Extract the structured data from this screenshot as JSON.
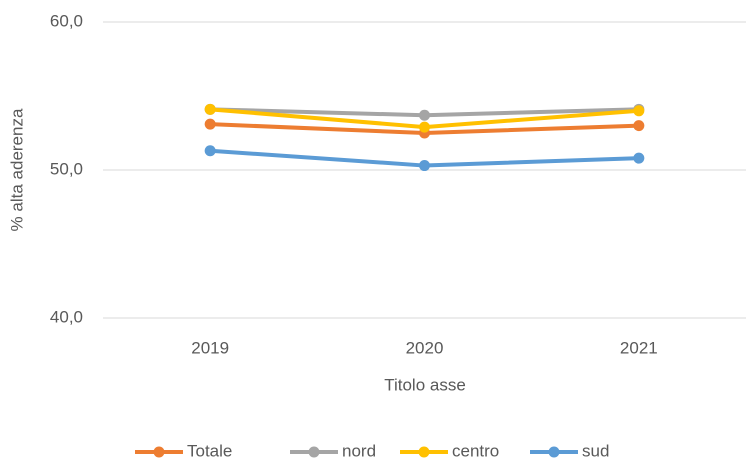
{
  "chart_data": {
    "type": "line",
    "y_label": "% alta aderenza",
    "x_label": "Titolo asse",
    "categories": [
      "2019",
      "2020",
      "2021"
    ],
    "series": [
      {
        "name": "Totale",
        "color": "#ed7d31",
        "values": [
          53.1,
          52.5,
          53.0
        ]
      },
      {
        "name": "nord",
        "color": "#a5a5a5",
        "values": [
          54.1,
          53.7,
          54.1
        ]
      },
      {
        "name": "centro",
        "color": "#ffc000",
        "values": [
          54.1,
          52.9,
          54.0
        ]
      },
      {
        "name": "sud",
        "color": "#5b9bd5",
        "values": [
          51.3,
          50.3,
          50.8
        ]
      }
    ],
    "ylim": [
      40,
      60
    ],
    "yticks": [
      {
        "value": 40,
        "label": "40,0"
      },
      {
        "value": 50,
        "label": "50,0"
      },
      {
        "value": 60,
        "label": "60,0"
      }
    ],
    "grid": true,
    "legend": "bottom"
  }
}
